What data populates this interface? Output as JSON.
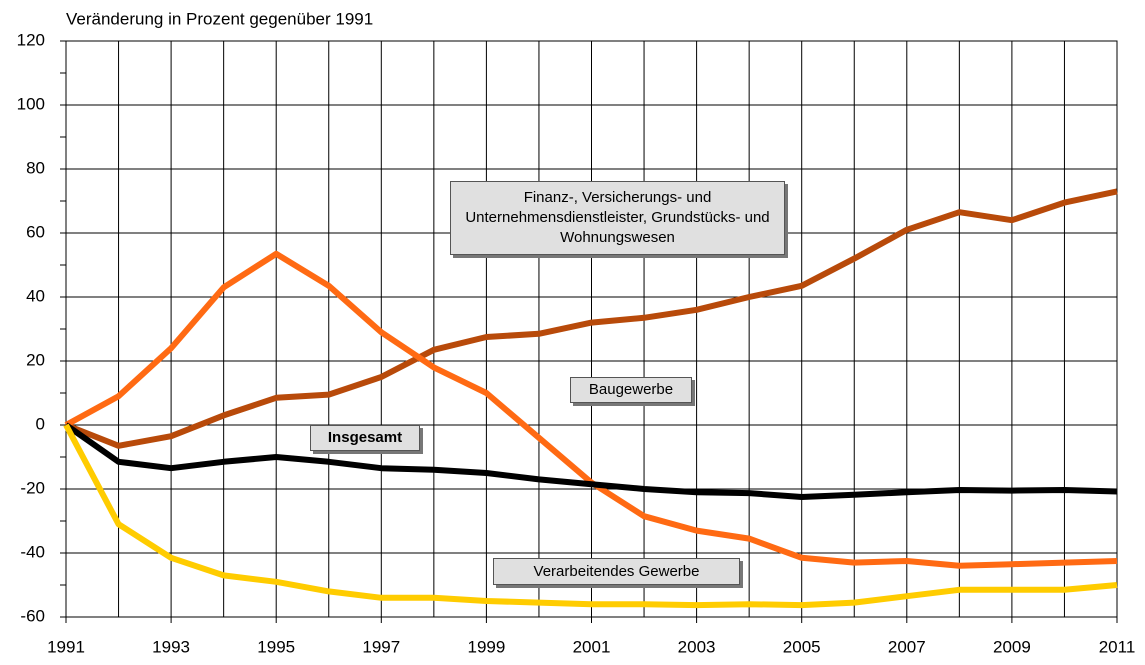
{
  "chart_data": {
    "type": "line",
    "title": "Veränderung in Prozent gegenüber 1991",
    "x": [
      1991,
      1992,
      1993,
      1994,
      1995,
      1996,
      1997,
      1998,
      1999,
      2000,
      2001,
      2002,
      2003,
      2004,
      2005,
      2006,
      2007,
      2008,
      2009,
      2010,
      2011
    ],
    "series": [
      {
        "name": "Finanz-, Versicherungs- und Unternehmensdienstleister, Grundstücks- und Wohnungswesen",
        "color": "#b84a0a",
        "values": [
          0,
          -6.5,
          -3.5,
          3,
          8.5,
          9.5,
          15,
          23.5,
          27.5,
          28.5,
          32,
          33.5,
          36,
          40,
          43.5,
          52,
          61,
          66.5,
          64,
          69.5,
          73
        ]
      },
      {
        "name": "Baugewerbe",
        "color": "#ff6a13",
        "values": [
          0,
          9,
          24,
          43,
          53.5,
          43.5,
          29,
          18,
          10,
          -4,
          -18,
          -28.5,
          -33,
          -35.5,
          -41.5,
          -43,
          -42.5,
          -44,
          -43.5,
          -43,
          -42.5
        ]
      },
      {
        "name": "Insgesamt",
        "color": "#000000",
        "values": [
          0,
          -11.5,
          -13.5,
          -11.5,
          -10,
          -11.5,
          -13.5,
          -14,
          -15,
          -17,
          -18.5,
          -20,
          -21,
          -21.3,
          -22.5,
          -21.8,
          -21,
          -20.3,
          -20.5,
          -20.3,
          -20.8
        ]
      },
      {
        "name": "Verarbeitendes Gewerbe",
        "color": "#ffcc00",
        "values": [
          0,
          -31,
          -41.5,
          -47,
          -49,
          -52,
          -54,
          -54,
          -55,
          -55.5,
          -56,
          -56,
          -56.3,
          -56,
          -56.3,
          -55.5,
          -53.5,
          -51.5,
          -51.5,
          -51.5,
          -50
        ]
      }
    ],
    "xlim": [
      1991,
      2011
    ],
    "xticks": [
      1991,
      1993,
      1995,
      1997,
      1999,
      2001,
      2003,
      2005,
      2007,
      2009,
      2011
    ],
    "minor_xticks": [
      1992,
      1994,
      1996,
      1998,
      2000,
      2002,
      2004,
      2006,
      2008,
      2010
    ],
    "ylim": [
      -60,
      120
    ],
    "yticks": [
      -60,
      -40,
      -20,
      0,
      20,
      40,
      60,
      80,
      100,
      120
    ],
    "minor_yticks": [
      -50,
      -30,
      -10,
      10,
      30,
      50,
      70,
      90,
      110
    ],
    "grid": true
  }
}
